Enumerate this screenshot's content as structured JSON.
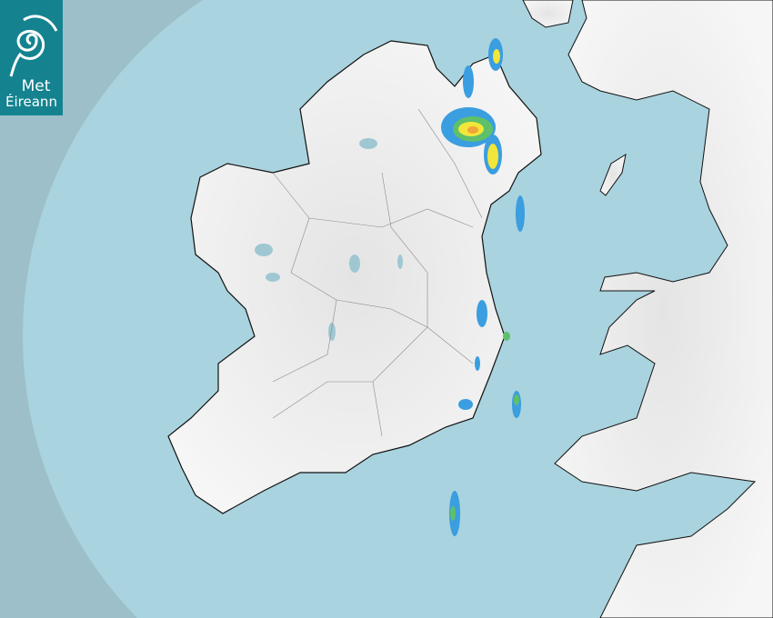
{
  "logo": {
    "line1": "Met",
    "line2": "Éireann",
    "background": "#14838f"
  },
  "map": {
    "type": "weather radar map",
    "colors": {
      "outer_sea": "#9cbfc9",
      "radar_coverage_sea": "#a9d3de",
      "land": "#eeeeee",
      "lakes": "#9fc7d2",
      "borders": "#000000"
    },
    "radar_echo_colors": [
      "#3a9ee0",
      "#5fc06a",
      "#f2e63a",
      "#f2a43a"
    ]
  }
}
